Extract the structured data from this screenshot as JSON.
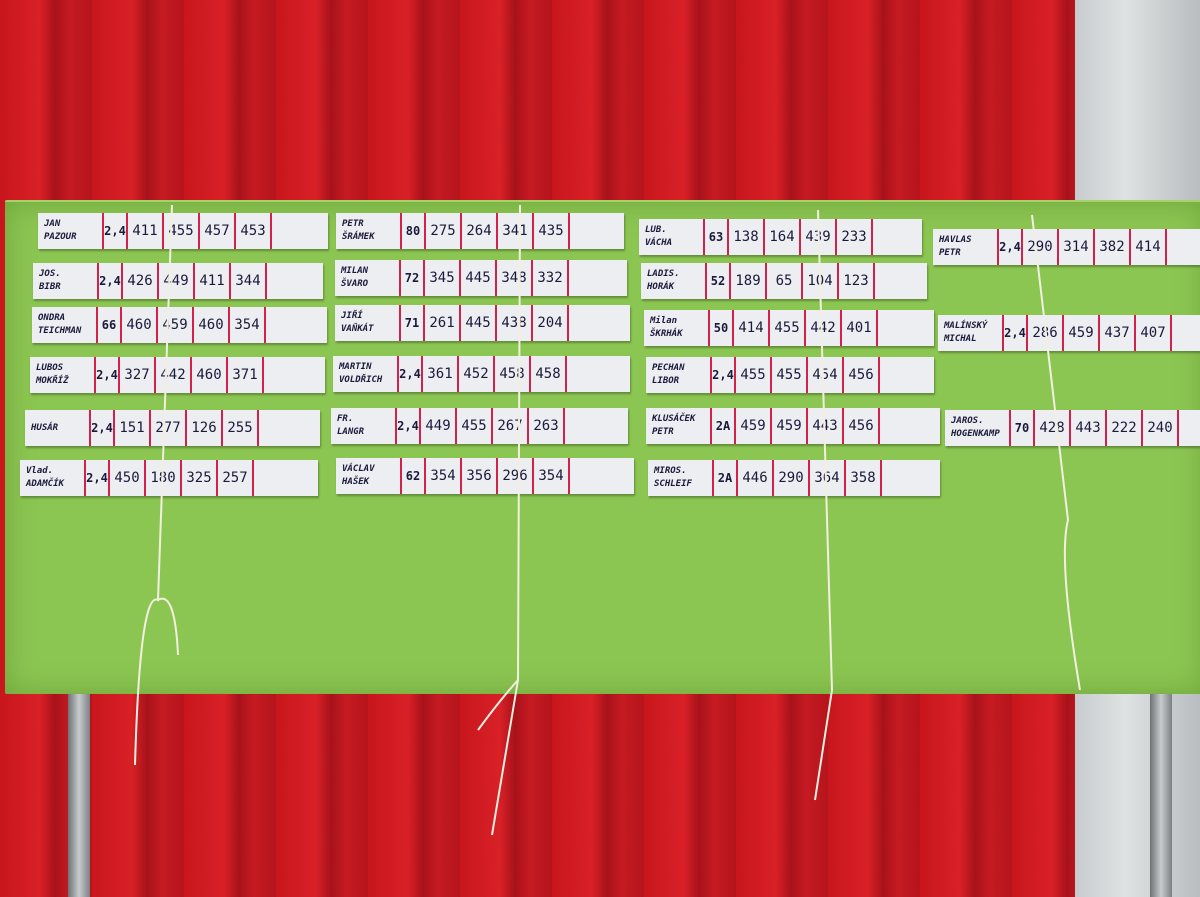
{
  "board_color": "#8cc652",
  "columns": [
    [
      {
        "name": [
          "JAN",
          "PAZOUR"
        ],
        "seed": "2,4",
        "scores": [
          "411",
          "455",
          "457",
          "453"
        ]
      },
      {
        "name": [
          "JOS.",
          "BIBR"
        ],
        "seed": "2,4",
        "scores": [
          "426",
          "449",
          "411",
          "344"
        ]
      },
      {
        "name": [
          "ONDRA",
          "TEICHMAN"
        ],
        "seed": "66",
        "scores": [
          "460",
          "459",
          "460",
          "354"
        ]
      },
      {
        "name": [
          "LUBOS",
          "MOKŘÍŽ"
        ],
        "seed": "2,4",
        "scores": [
          "327",
          "442",
          "460",
          "371"
        ]
      },
      {
        "name": [
          "HUSÁR",
          ""
        ],
        "seed": "2,4",
        "scores": [
          "151",
          "277",
          "126",
          "255"
        ]
      },
      {
        "name": [
          "Vlad.",
          "ADAMČÍK"
        ],
        "seed": "2,4",
        "scores": [
          "450",
          "180",
          "325",
          "257"
        ]
      }
    ],
    [
      {
        "name": [
          "PETR",
          "ŠRÁMEK"
        ],
        "seed": "80",
        "scores": [
          "275",
          "264",
          "341",
          "435"
        ]
      },
      {
        "name": [
          "MILAN",
          "ŠVARO"
        ],
        "seed": "72",
        "scores": [
          "345",
          "445",
          "348",
          "332"
        ]
      },
      {
        "name": [
          "JIŘÍ",
          "VAŇKÁT"
        ],
        "seed": "71",
        "scores": [
          "261",
          "445",
          "438",
          "204"
        ]
      },
      {
        "name": [
          "MARTIN",
          "VOLDŘICH"
        ],
        "seed": "2,4",
        "scores": [
          "361",
          "452",
          "458",
          "458"
        ]
      },
      {
        "name": [
          "FR.",
          "LANGR"
        ],
        "seed": "2,4",
        "scores": [
          "449",
          "455",
          "267",
          "263"
        ]
      },
      {
        "name": [
          "VÁCLAV",
          "HAŠEK"
        ],
        "seed": "62",
        "scores": [
          "354",
          "356",
          "296",
          "354"
        ]
      }
    ],
    [
      {
        "name": [
          "LUB.",
          "VÁCHA"
        ],
        "seed": "63",
        "scores": [
          "138",
          "164",
          "439",
          "233"
        ]
      },
      {
        "name": [
          "LADIS.",
          "HORÁK"
        ],
        "seed": "52",
        "scores": [
          "189",
          "65",
          "104",
          "123"
        ]
      },
      {
        "name": [
          "Milan",
          "ŠKRHÁK"
        ],
        "seed": "50",
        "scores": [
          "414",
          "455",
          "442",
          "401"
        ]
      },
      {
        "name": [
          "PECHAN",
          "LIBOR"
        ],
        "seed": "2,4",
        "scores": [
          "455",
          "455",
          "454",
          "456"
        ]
      },
      {
        "name": [
          "KLUSÁČEK",
          "PETR"
        ],
        "seed": "2A",
        "scores": [
          "459",
          "459",
          "443",
          "456"
        ]
      },
      {
        "name": [
          "MIROS.",
          "SCHLEIF"
        ],
        "seed": "2A",
        "scores": [
          "446",
          "290",
          "364",
          "358"
        ]
      }
    ],
    [
      {
        "name": [
          "HAVLAS",
          "PETR"
        ],
        "seed": "2,4",
        "scores": [
          "290",
          "314",
          "382",
          "414"
        ]
      },
      {
        "name": [
          "MALÍNSKÝ",
          "MICHAL"
        ],
        "seed": "2,4",
        "scores": [
          "286",
          "459",
          "437",
          "407"
        ]
      },
      {
        "name": [
          "JAROS.",
          "HOGENKAMP"
        ],
        "seed": "70",
        "scores": [
          "428",
          "443",
          "222",
          "240"
        ]
      }
    ]
  ]
}
